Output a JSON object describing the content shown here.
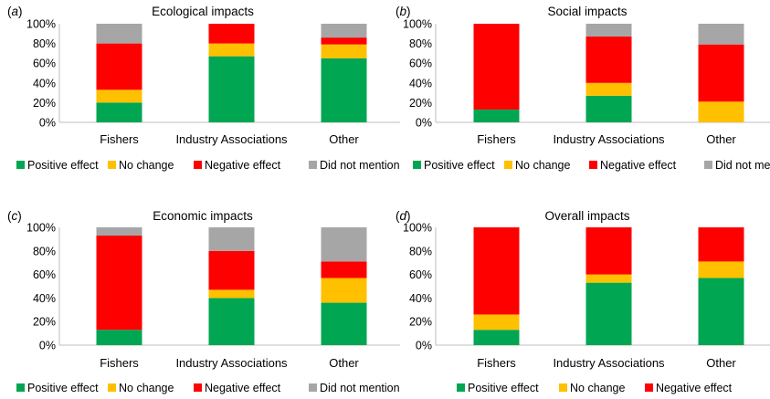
{
  "colors": {
    "positive": "#00a651",
    "no_change": "#ffc000",
    "negative": "#ff0000",
    "not_mentioned": "#a6a6a6"
  },
  "chart_data": [
    {
      "type": "bar",
      "stacked": true,
      "panel_letter": "a",
      "title": "Ecological impacts",
      "categories": [
        "Fishers",
        "Industry Associations",
        "Other"
      ],
      "yticks": [
        "0%",
        "20%",
        "40%",
        "60%",
        "80%",
        "100%"
      ],
      "ylim": [
        0,
        100
      ],
      "series": [
        {
          "name": "Positive effect",
          "color": "#00a651",
          "values": [
            20,
            67,
            65
          ]
        },
        {
          "name": "No change",
          "color": "#ffc000",
          "values": [
            13,
            13,
            14
          ]
        },
        {
          "name": "Negative effect",
          "color": "#ff0000",
          "values": [
            47,
            20,
            7
          ]
        },
        {
          "name": "Did not mention",
          "color": "#a6a6a6",
          "values": [
            20,
            0,
            14
          ]
        }
      ]
    },
    {
      "type": "bar",
      "stacked": true,
      "panel_letter": "b",
      "title": "Social impacts",
      "categories": [
        "Fishers",
        "Industry Associations",
        "Other"
      ],
      "yticks": [
        "0%",
        "20%",
        "40%",
        "60%",
        "80%",
        "100%"
      ],
      "ylim": [
        0,
        100
      ],
      "series": [
        {
          "name": "Positive effect",
          "color": "#00a651",
          "values": [
            13,
            27,
            0
          ]
        },
        {
          "name": "No change",
          "color": "#ffc000",
          "values": [
            0,
            13,
            21
          ]
        },
        {
          "name": "Negative effect",
          "color": "#ff0000",
          "values": [
            87,
            47,
            58
          ]
        },
        {
          "name": "Did not mention",
          "color": "#a6a6a6",
          "values": [
            0,
            13,
            21
          ]
        }
      ]
    },
    {
      "type": "bar",
      "stacked": true,
      "panel_letter": "c",
      "title": "Economic impacts",
      "categories": [
        "Fishers",
        "Industry Associations",
        "Other"
      ],
      "yticks": [
        "0%",
        "20%",
        "40%",
        "60%",
        "80%",
        "100%"
      ],
      "ylim": [
        0,
        100
      ],
      "series": [
        {
          "name": "Positive effect",
          "color": "#00a651",
          "values": [
            13,
            40,
            36
          ]
        },
        {
          "name": "No change",
          "color": "#ffc000",
          "values": [
            0,
            7,
            21
          ]
        },
        {
          "name": "Negative effect",
          "color": "#ff0000",
          "values": [
            80,
            33,
            14
          ]
        },
        {
          "name": "Did not mention",
          "color": "#a6a6a6",
          "values": [
            7,
            20,
            29
          ]
        }
      ]
    },
    {
      "type": "bar",
      "stacked": true,
      "panel_letter": "d",
      "title": "Overall impacts",
      "categories": [
        "Fishers",
        "Industry Associations",
        "Other"
      ],
      "yticks": [
        "0%",
        "20%",
        "40%",
        "60%",
        "80%",
        "100%"
      ],
      "ylim": [
        0,
        100
      ],
      "series": [
        {
          "name": "Positive effect",
          "color": "#00a651",
          "values": [
            13,
            53,
            57
          ]
        },
        {
          "name": "No change",
          "color": "#ffc000",
          "values": [
            13,
            7,
            14
          ]
        },
        {
          "name": "Negative effect",
          "color": "#ff0000",
          "values": [
            74,
            40,
            29
          ]
        }
      ]
    }
  ]
}
